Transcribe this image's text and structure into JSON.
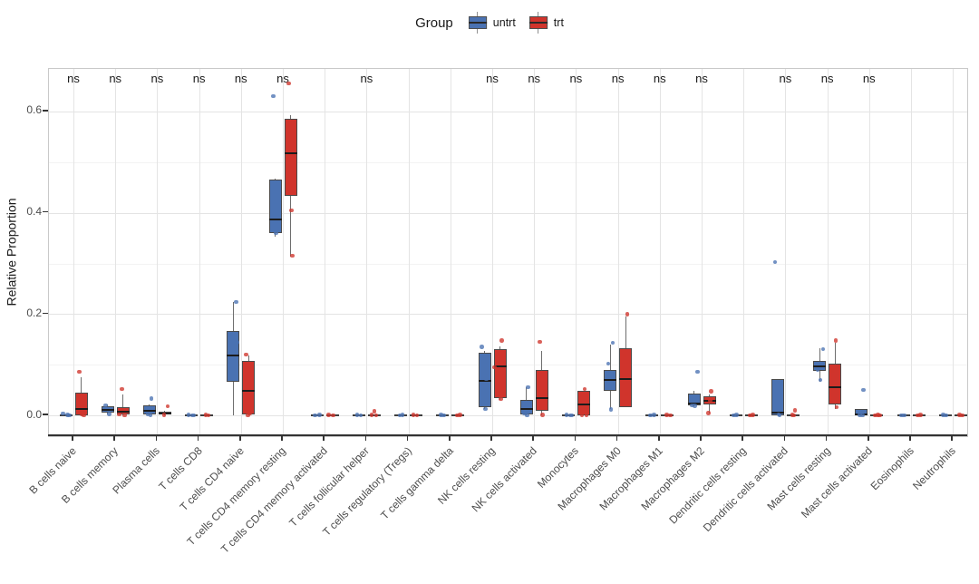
{
  "chart_data": {
    "type": "grouped_boxplot_jitter",
    "title": "",
    "ylabel": "Relative Proportion",
    "significance_label": "ns",
    "ytick_labels": [
      "0.0",
      "0.2",
      "0.4",
      "0.6"
    ],
    "ytick_values": [
      0,
      0.2,
      0.4,
      0.6
    ],
    "yminor_values": [
      0.1,
      0.3,
      0.5
    ],
    "ylim": [
      -0.041,
      0.684
    ],
    "grid": true,
    "legend": {
      "title": "Group",
      "position": "top",
      "entries": [
        {
          "label": "untrt",
          "color": "#4a72b2"
        },
        {
          "label": "trt",
          "color": "#d0342c"
        }
      ]
    },
    "categories": [
      {
        "label": "B cells naive",
        "ns": true,
        "groups": [
          {
            "lo": 0,
            "q1": 0,
            "med": 0,
            "q3": 0,
            "hi": 0,
            "pts": [
              [
                -3,
                0.004
              ],
              [
                2,
                0.001
              ],
              [
                4,
                0
              ]
            ]
          },
          {
            "lo": 0,
            "q1": 0.001,
            "med": 0.012,
            "q3": 0.045,
            "hi": 0.075,
            "pts": [
              [
                -2,
                0.086
              ],
              [
                1,
                0.002
              ],
              [
                3,
                0
              ]
            ]
          }
        ]
      },
      {
        "label": "B cells memory",
        "ns": true,
        "groups": [
          {
            "lo": 0.002,
            "q1": 0.005,
            "med": 0.011,
            "q3": 0.018,
            "hi": 0.022,
            "pts": [
              [
                -2,
                0.02
              ],
              [
                2,
                0.003
              ]
            ]
          },
          {
            "lo": 0,
            "q1": 0.002,
            "med": 0.008,
            "q3": 0.016,
            "hi": 0.042,
            "pts": [
              [
                -1,
                0.052
              ],
              [
                -4,
                0.002
              ],
              [
                2,
                0
              ]
            ]
          }
        ]
      },
      {
        "label": "Plasma cells",
        "ns": true,
        "groups": [
          {
            "lo": 0,
            "q1": 0.002,
            "med": 0.009,
            "q3": 0.02,
            "hi": 0.022,
            "pts": [
              [
                2,
                0.033
              ],
              [
                -2,
                0.002
              ],
              [
                1,
                0
              ]
            ]
          },
          {
            "lo": 0.001,
            "q1": 0.002,
            "med": 0.004,
            "q3": 0.008,
            "hi": 0.009,
            "pts": [
              [
                3,
                0.018
              ],
              [
                -1,
                0.001
              ]
            ]
          }
        ]
      },
      {
        "label": "T cells CD8",
        "ns": true,
        "groups": [
          {
            "lo": 0,
            "q1": 0,
            "med": 0,
            "q3": 0,
            "hi": 0,
            "pts": [
              [
                -3,
                0.001
              ],
              [
                1,
                0
              ],
              [
                3,
                0
              ]
            ]
          },
          {
            "lo": 0,
            "q1": 0,
            "med": 0,
            "q3": 0,
            "hi": 0,
            "pts": [
              [
                -1,
                0.001
              ],
              [
                2,
                0
              ]
            ]
          }
        ]
      },
      {
        "label": "T cells CD4 naive",
        "ns": true,
        "groups": [
          {
            "lo": 0,
            "q1": 0.066,
            "med": 0.118,
            "q3": 0.166,
            "hi": 0.224,
            "pts": [
              [
                3,
                0.224
              ],
              [
                4,
                0.144
              ],
              [
                2,
                0.089
              ]
            ]
          },
          {
            "lo": 0,
            "q1": 0.002,
            "med": 0.048,
            "q3": 0.108,
            "hi": 0.118,
            "pts": [
              [
                -3,
                0.12
              ],
              [
                1,
                0.004
              ],
              [
                -1,
                0
              ]
            ]
          }
        ]
      },
      {
        "label": "T cells CD4 memory resting",
        "ns": true,
        "groups": [
          {
            "lo": 0.353,
            "q1": 0.36,
            "med": 0.386,
            "q3": 0.465,
            "hi": 0.468,
            "pts": [
              [
                -2,
                0.63
              ],
              [
                3,
                0.42
              ],
              [
                1,
                0.36
              ]
            ]
          },
          {
            "lo": 0.313,
            "q1": 0.433,
            "med": 0.518,
            "q3": 0.585,
            "hi": 0.592,
            "pts": [
              [
                -2,
                0.655
              ],
              [
                1,
                0.405
              ],
              [
                2,
                0.315
              ]
            ]
          }
        ]
      },
      {
        "label": "T cells CD4 memory activated",
        "ns": false,
        "groups": [
          {
            "lo": 0,
            "q1": 0,
            "med": 0,
            "q3": 0,
            "hi": 0,
            "pts": [
              [
                -2,
                0
              ],
              [
                3,
                0.001
              ]
            ]
          },
          {
            "lo": 0,
            "q1": 0,
            "med": 0,
            "q3": 0,
            "hi": 0,
            "pts": [
              [
                -4,
                0.001
              ],
              [
                1,
                0
              ]
            ]
          }
        ]
      },
      {
        "label": "T cells follicular helper",
        "ns": true,
        "groups": [
          {
            "lo": 0,
            "q1": 0,
            "med": 0,
            "q3": 0,
            "hi": 0,
            "pts": [
              [
                -2,
                0.001
              ],
              [
                2,
                0
              ]
            ]
          },
          {
            "lo": 0,
            "q1": 0,
            "med": 0,
            "q3": 0,
            "hi": 0,
            "pts": [
              [
                0,
                0.008
              ],
              [
                -3,
                0.001
              ],
              [
                2,
                0
              ]
            ]
          }
        ]
      },
      {
        "label": "T cells regulatory (Tregs)",
        "ns": false,
        "groups": [
          {
            "lo": 0,
            "q1": 0,
            "med": 0,
            "q3": 0,
            "hi": 0,
            "pts": [
              [
                -1,
                0
              ],
              [
                2,
                0.001
              ]
            ]
          },
          {
            "lo": 0,
            "q1": 0,
            "med": 0,
            "q3": 0,
            "hi": 0,
            "pts": [
              [
                -3,
                0.001
              ],
              [
                1,
                0
              ]
            ]
          }
        ]
      },
      {
        "label": "T cells gamma delta",
        "ns": false,
        "groups": [
          {
            "lo": 0,
            "q1": 0,
            "med": 0,
            "q3": 0,
            "hi": 0,
            "pts": [
              [
                -2,
                0.001
              ],
              [
                1,
                0
              ]
            ]
          },
          {
            "lo": 0,
            "q1": 0,
            "med": 0,
            "q3": 0,
            "hi": 0,
            "pts": [
              [
                2,
                0.001
              ],
              [
                -1,
                0
              ]
            ]
          }
        ]
      },
      {
        "label": "NK cells resting",
        "ns": true,
        "groups": [
          {
            "lo": 0.013,
            "q1": 0.016,
            "med": 0.069,
            "q3": 0.123,
            "hi": 0.128,
            "pts": [
              [
                -3,
                0.135
              ],
              [
                2,
                0.072
              ],
              [
                1,
                0.013
              ]
            ]
          },
          {
            "lo": 0.03,
            "q1": 0.034,
            "med": 0.097,
            "q3": 0.13,
            "hi": 0.136,
            "pts": [
              [
                2,
                0.148
              ],
              [
                -6,
                0.095
              ],
              [
                1,
                0.032
              ]
            ]
          }
        ]
      },
      {
        "label": "NK cells activated",
        "ns": true,
        "groups": [
          {
            "lo": 0,
            "q1": 0.002,
            "med": 0.012,
            "q3": 0.03,
            "hi": 0.055,
            "pts": [
              [
                2,
                0.056
              ],
              [
                -2,
                0.004
              ],
              [
                1,
                0
              ]
            ]
          },
          {
            "lo": 0,
            "q1": 0.01,
            "med": 0.035,
            "q3": 0.09,
            "hi": 0.128,
            "pts": [
              [
                -2,
                0.145
              ],
              [
                3,
                0.048
              ],
              [
                1,
                0.001
              ]
            ]
          }
        ]
      },
      {
        "label": "Monocytes",
        "ns": true,
        "groups": [
          {
            "lo": 0,
            "q1": 0,
            "med": 0,
            "q3": 0,
            "hi": 0,
            "pts": [
              [
                -2,
                0.001
              ],
              [
                2,
                0
              ],
              [
                4,
                0
              ]
            ]
          },
          {
            "lo": 0,
            "q1": 0,
            "med": 0.022,
            "q3": 0.048,
            "hi": 0.048,
            "pts": [
              [
                1,
                0.052
              ],
              [
                -2,
                0.001
              ],
              [
                3,
                0
              ]
            ]
          }
        ]
      },
      {
        "label": "Macrophages M0",
        "ns": true,
        "groups": [
          {
            "lo": 0.012,
            "q1": 0.048,
            "med": 0.07,
            "q3": 0.09,
            "hi": 0.14,
            "pts": [
              [
                3,
                0.143
              ],
              [
                -2,
                0.102
              ],
              [
                1,
                0.012
              ]
            ]
          },
          {
            "lo": 0.016,
            "q1": 0.016,
            "med": 0.072,
            "q3": 0.133,
            "hi": 0.195,
            "pts": [
              [
                2,
                0.2
              ],
              [
                -1,
                0.118
              ],
              [
                1,
                0.042
              ]
            ]
          }
        ]
      },
      {
        "label": "Macrophages M1",
        "ns": true,
        "groups": [
          {
            "lo": 0,
            "q1": 0,
            "med": 0,
            "q3": 0,
            "hi": 0,
            "pts": [
              [
                -2,
                0
              ],
              [
                2,
                0.001
              ]
            ]
          },
          {
            "lo": 0,
            "q1": 0,
            "med": 0,
            "q3": 0,
            "hi": 0,
            "pts": [
              [
                -1,
                0.001
              ],
              [
                3,
                0
              ]
            ]
          }
        ]
      },
      {
        "label": "Macrophages M2",
        "ns": true,
        "groups": [
          {
            "lo": 0.018,
            "q1": 0.02,
            "med": 0.024,
            "q3": 0.043,
            "hi": 0.048,
            "pts": [
              [
                4,
                0.086
              ],
              [
                -2,
                0.02
              ],
              [
                1,
                0.019
              ]
            ]
          },
          {
            "lo": 0.004,
            "q1": 0.021,
            "med": 0.029,
            "q3": 0.038,
            "hi": 0.042,
            "pts": [
              [
                2,
                0.048
              ],
              [
                -1,
                0.005
              ],
              [
                1,
                0.03
              ]
            ]
          }
        ]
      },
      {
        "label": "Dendritic cells resting",
        "ns": false,
        "groups": [
          {
            "lo": 0,
            "q1": 0,
            "med": 0,
            "q3": 0,
            "hi": 0,
            "pts": [
              [
                -2,
                0
              ],
              [
                1,
                0.001
              ]
            ]
          },
          {
            "lo": 0,
            "q1": 0,
            "med": 0,
            "q3": 0,
            "hi": 0,
            "pts": [
              [
                2,
                0.001
              ],
              [
                -1,
                0
              ]
            ]
          }
        ]
      },
      {
        "label": "Dendritic cells activated",
        "ns": true,
        "groups": [
          {
            "lo": 0,
            "q1": 0.001,
            "med": 0.005,
            "q3": 0.072,
            "hi": 0.072,
            "pts": [
              [
                -3,
                0.303
              ],
              [
                1,
                0.002
              ],
              [
                2,
                0
              ]
            ]
          },
          {
            "lo": 0,
            "q1": 0,
            "med": 0.001,
            "q3": 0.002,
            "hi": 0.002,
            "pts": [
              [
                2,
                0.01
              ],
              [
                -1,
                0.001
              ],
              [
                1,
                0
              ]
            ]
          }
        ]
      },
      {
        "label": "Mast cells resting",
        "ns": true,
        "groups": [
          {
            "lo": 0.067,
            "q1": 0.088,
            "med": 0.097,
            "q3": 0.108,
            "hi": 0.132,
            "pts": [
              [
                4,
                0.131
              ],
              [
                -2,
                0.09
              ],
              [
                1,
                0.07
              ]
            ]
          },
          {
            "lo": 0.013,
            "q1": 0.022,
            "med": 0.056,
            "q3": 0.103,
            "hi": 0.144,
            "pts": [
              [
                1,
                0.148
              ],
              [
                -3,
                0.089
              ],
              [
                2,
                0.016
              ]
            ]
          }
        ]
      },
      {
        "label": "Mast cells activated",
        "ns": true,
        "groups": [
          {
            "lo": 0,
            "q1": 0,
            "med": 0.002,
            "q3": 0.013,
            "hi": 0.013,
            "pts": [
              [
                2,
                0.05
              ],
              [
                -2,
                0.001
              ],
              [
                1,
                0
              ]
            ]
          },
          {
            "lo": 0,
            "q1": 0,
            "med": 0,
            "q3": 0,
            "hi": 0,
            "pts": [
              [
                1,
                0.001
              ],
              [
                -2,
                0
              ],
              [
                3,
                0
              ]
            ]
          }
        ]
      },
      {
        "label": "Eosinophils",
        "ns": false,
        "groups": [
          {
            "lo": 0,
            "q1": 0,
            "med": 0,
            "q3": 0,
            "hi": 0,
            "pts": [
              [
                -2,
                0
              ],
              [
                1,
                0
              ]
            ]
          },
          {
            "lo": 0,
            "q1": 0,
            "med": 0,
            "q3": 0,
            "hi": 0,
            "pts": [
              [
                2,
                0.001
              ],
              [
                -1,
                0
              ]
            ]
          }
        ]
      },
      {
        "label": "Neutrophils",
        "ns": false,
        "groups": [
          {
            "lo": 0,
            "q1": 0,
            "med": 0,
            "q3": 0,
            "hi": 0,
            "pts": [
              [
                -2,
                0.001
              ],
              [
                1,
                0
              ]
            ]
          },
          {
            "lo": 0,
            "q1": 0,
            "med": 0,
            "q3": 0,
            "hi": 0,
            "pts": [
              [
                2,
                0
              ],
              [
                -1,
                0.001
              ]
            ]
          }
        ]
      }
    ]
  }
}
